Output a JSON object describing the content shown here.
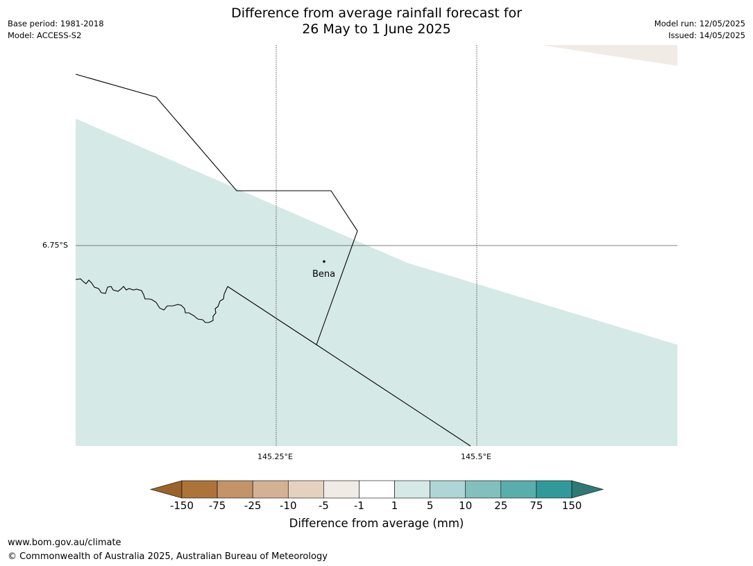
{
  "title": {
    "line1": "Difference from average rainfall forecast for",
    "line2": "26 May to 1 June 2025"
  },
  "meta": {
    "base_period": "Base period: 1981-2018",
    "model": "Model: ACCESS-S2",
    "model_run": "Model run: 12/05/2025",
    "issued": "Issued: 14/05/2025"
  },
  "map": {
    "lat_label": "6.75°S",
    "lon_labels": [
      "145.25°E",
      "145.5°E"
    ],
    "place": "Bena",
    "zone_colors": {
      "light_teal": "#d5e9e7",
      "light_beige": "#f1ebe6"
    }
  },
  "colorbar": {
    "title": "Difference from average (mm)",
    "ticks": [
      "-150",
      "-75",
      "-25",
      "-10",
      "-5",
      "-1",
      "1",
      "5",
      "10",
      "25",
      "75",
      "150"
    ],
    "colors": [
      "#9b6329",
      "#ad743a",
      "#c29468",
      "#d3b293",
      "#e5d1bf",
      "#f1ebe6",
      "#ffffff",
      "#d5e9e7",
      "#aed6d6",
      "#81c0bd",
      "#5aadad",
      "#32999a",
      "#2e7976"
    ]
  },
  "footer": {
    "url": "www.bom.gov.au/climate",
    "copyright": "© Commonwealth of Australia 2025, Australian Bureau of Meteorology"
  }
}
